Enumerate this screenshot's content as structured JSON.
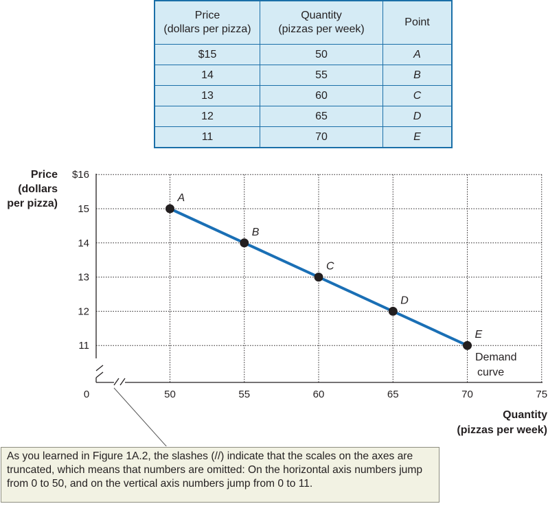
{
  "table": {
    "headers": [
      "Price\n(dollars per pizza)",
      "Quantity\n(pizzas per week)",
      "Point"
    ],
    "rows": [
      [
        "$15",
        "50",
        "A"
      ],
      [
        "14",
        "55",
        "B"
      ],
      [
        "13",
        "60",
        "C"
      ],
      [
        "12",
        "65",
        "D"
      ],
      [
        "11",
        "70",
        "E"
      ]
    ]
  },
  "chart_data": {
    "type": "line",
    "ylabel": [
      "Price",
      "(dollars",
      "per pizza)"
    ],
    "xlabel": [
      "Quantity",
      "(pizzas per week)"
    ],
    "x_ticks": [
      "0",
      "50",
      "55",
      "60",
      "65",
      "70",
      "75"
    ],
    "y_ticks": [
      "$16",
      "15",
      "14",
      "13",
      "12",
      "11"
    ],
    "x_grid_values": [
      50,
      55,
      60,
      65,
      70,
      75
    ],
    "y_grid_values": [
      16,
      15,
      14,
      13,
      12,
      11
    ],
    "xlim": [
      50,
      75
    ],
    "ylim": [
      11,
      16
    ],
    "axes_truncated": true,
    "grid": "dotted",
    "series": [
      {
        "name": "Demand curve",
        "color": "#1a6fb5",
        "points": [
          {
            "label": "A",
            "x": 50,
            "y": 15
          },
          {
            "label": "B",
            "x": 55,
            "y": 14
          },
          {
            "label": "C",
            "x": 60,
            "y": 13
          },
          {
            "label": "D",
            "x": 65,
            "y": 12
          },
          {
            "label": "E",
            "x": 70,
            "y": 11
          }
        ]
      }
    ],
    "curve_label": [
      "Demand",
      "curve"
    ]
  },
  "caption": "As you learned in Figure 1A.2, the slashes (//) indicate that the scales on the axes are truncated, which means that numbers are omitted: On the horizontal axis numbers jump from 0 to 50, and on the vertical axis numbers jump from 0 to 11."
}
